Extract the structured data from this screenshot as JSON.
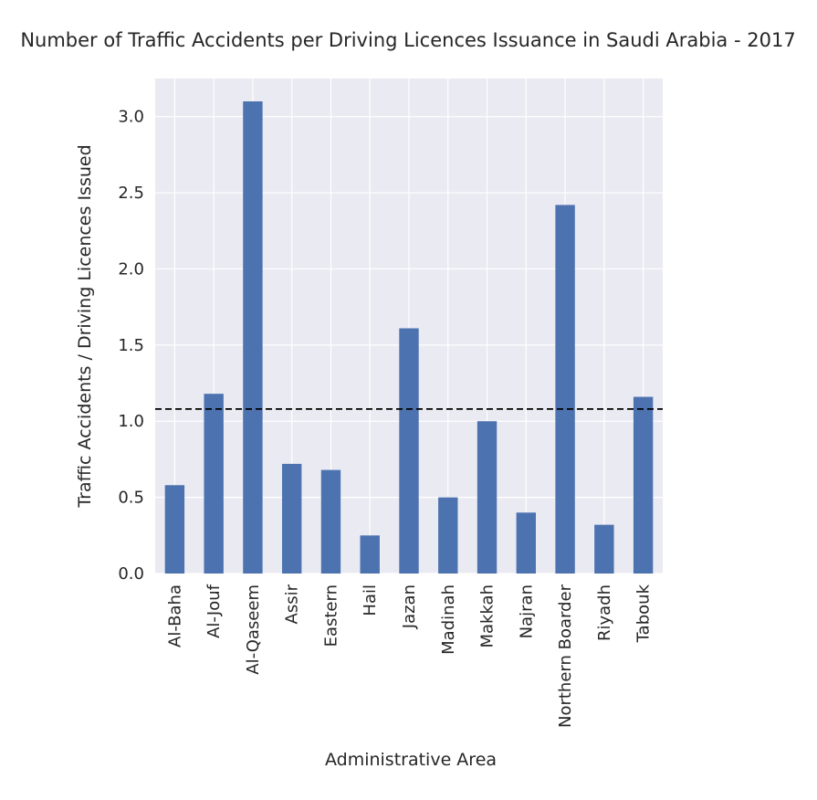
{
  "chart_data": {
    "type": "bar",
    "title": "Number of Traffic Accidents per Driving Licences Issuance in Saudi Arabia - 2017",
    "xlabel": "Administrative Area",
    "ylabel": "Traffic Accidents / Driving Licences Issued",
    "categories": [
      "Al-Baha",
      "Al-Jouf",
      "Al-Qaseem",
      "Assir",
      "Eastern",
      "Hail",
      "Jazan",
      "Madinah",
      "Makkah",
      "Najran",
      "Northern Boarder",
      "Riyadh",
      "Tabouk"
    ],
    "values": [
      0.58,
      1.18,
      3.1,
      0.72,
      0.68,
      0.25,
      1.61,
      0.5,
      1.0,
      0.4,
      2.42,
      0.32,
      1.16
    ],
    "ylim": [
      0,
      3.25
    ],
    "yticks": [
      "0.0",
      "0.5",
      "1.0",
      "1.5",
      "2.0",
      "2.5",
      "3.0"
    ],
    "reference_line": {
      "y": 1.08,
      "style": "dashed",
      "color": "#000000"
    },
    "grid": true,
    "legend": "none",
    "colors": {
      "bar": "#4c72b0",
      "plot_background": "#eaeaf2",
      "grid": "#ffffff"
    }
  }
}
